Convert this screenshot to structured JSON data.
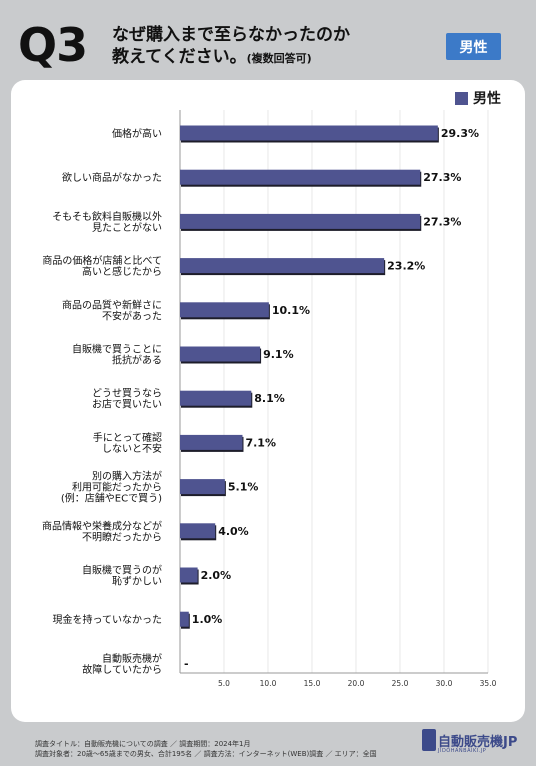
{
  "header": {
    "question_number": "Q3",
    "title_line1": "なぜ購入まで至らなかったのか",
    "title_line2": "教えてください。",
    "title_note": "(複数回答可)",
    "badge": "男性"
  },
  "chart_data": {
    "type": "bar",
    "orientation": "horizontal",
    "categories": [
      [
        "価格が高い"
      ],
      [
        "欲しい商品がなかった"
      ],
      [
        "そもそも飲料自販機以外",
        "見たことがない"
      ],
      [
        "商品の価格が店舗と比べて",
        "高いと感じたから"
      ],
      [
        "商品の品質や新鮮さに",
        "不安があった"
      ],
      [
        "自販機で買うことに",
        "抵抗がある"
      ],
      [
        "どうせ買うなら",
        "お店で買いたい"
      ],
      [
        "手にとって確認",
        "しないと不安"
      ],
      [
        "別の購入方法が",
        "利用可能だったから",
        "(例：店舗やECで買う)"
      ],
      [
        "商品情報や栄養成分などが",
        "不明瞭だったから"
      ],
      [
        "自販機で買うのが",
        "恥ずかしい"
      ],
      [
        "現金を持っていなかった"
      ],
      [
        "自動販売機が",
        "故障していたから"
      ]
    ],
    "series": [
      {
        "name": "男性",
        "values": [
          29.3,
          27.3,
          27.3,
          23.2,
          10.1,
          9.1,
          8.1,
          7.1,
          5.1,
          4.0,
          2.0,
          1.0,
          null
        ],
        "labels": [
          "29.3%",
          "27.3%",
          "27.3%",
          "23.2%",
          "10.1%",
          "9.1%",
          "8.1%",
          "7.1%",
          "5.1%",
          "4.0%",
          "2.0%",
          "1.0%",
          "-"
        ]
      }
    ],
    "xlim": [
      0,
      35
    ],
    "x_ticks": [
      "5.0",
      "10.0",
      "15.0",
      "20.0",
      "25.0",
      "30.0",
      "35.0"
    ],
    "legend_position": "top-right",
    "bar_color": "#4f5490"
  },
  "footer": {
    "line1": "調査タイトル：自動販売機についての調査 ／ 調査期間：2024年1月",
    "line2": "調査対象者：20歳～65歳までの男女、合計195名 ／ 調査方法：インターネット(WEB)調査 ／ エリア：全国"
  },
  "logo": {
    "text": "自動販売機JP",
    "sub": "JIDOHANBAIKI.JP"
  }
}
